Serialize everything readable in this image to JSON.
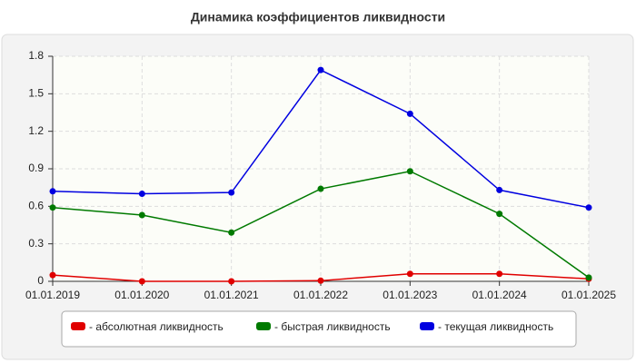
{
  "chart_data": {
    "type": "line",
    "title": "Динамика коэффициентов ликвидности",
    "categories": [
      "01.01.2019",
      "01.01.2020",
      "01.01.2021",
      "01.01.2022",
      "01.01.2023",
      "01.01.2024",
      "01.01.2025"
    ],
    "series": [
      {
        "name": "- абсолютная ликвидность",
        "color": "#e00000",
        "values": [
          0.05,
          0.0,
          0.0,
          0.005,
          0.06,
          0.06,
          0.02
        ]
      },
      {
        "name": "- быстрая ликвидность",
        "color": "#007a00",
        "values": [
          0.59,
          0.53,
          0.39,
          0.74,
          0.88,
          0.54,
          0.03
        ]
      },
      {
        "name": "- текущая ликвидность",
        "color": "#0000e0",
        "values": [
          0.72,
          0.7,
          0.71,
          1.69,
          1.34,
          0.73,
          0.59
        ]
      }
    ],
    "ylim": [
      0,
      1.8
    ],
    "yticks": [
      0,
      0.3,
      0.6,
      0.9,
      1.2,
      1.5,
      1.8
    ],
    "grid": true
  }
}
